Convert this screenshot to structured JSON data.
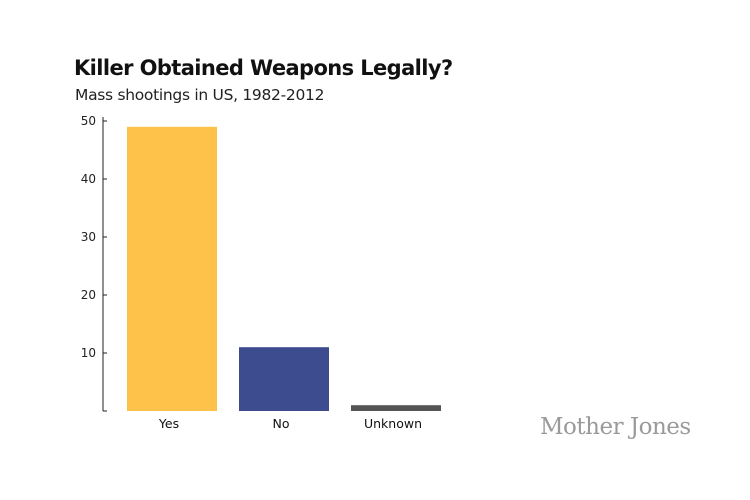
{
  "chart_data": {
    "type": "bar",
    "title": "Killer Obtained Weapons Legally?",
    "subtitle": "Mass shootings in US, 1982-2012",
    "xlabel": "",
    "ylabel": "",
    "categories": [
      "Yes",
      "No",
      "Unknown"
    ],
    "values": [
      49,
      11,
      1
    ],
    "colors": [
      "#fec24b",
      "#3d4b8f",
      "#555555"
    ],
    "ylim": [
      0,
      50
    ],
    "yticks": [
      10,
      20,
      30,
      40,
      50
    ],
    "grid": false,
    "legend": "none"
  },
  "brand": {
    "logo_text": "Mother Jones",
    "logo_color": "#9a9a9a"
  }
}
